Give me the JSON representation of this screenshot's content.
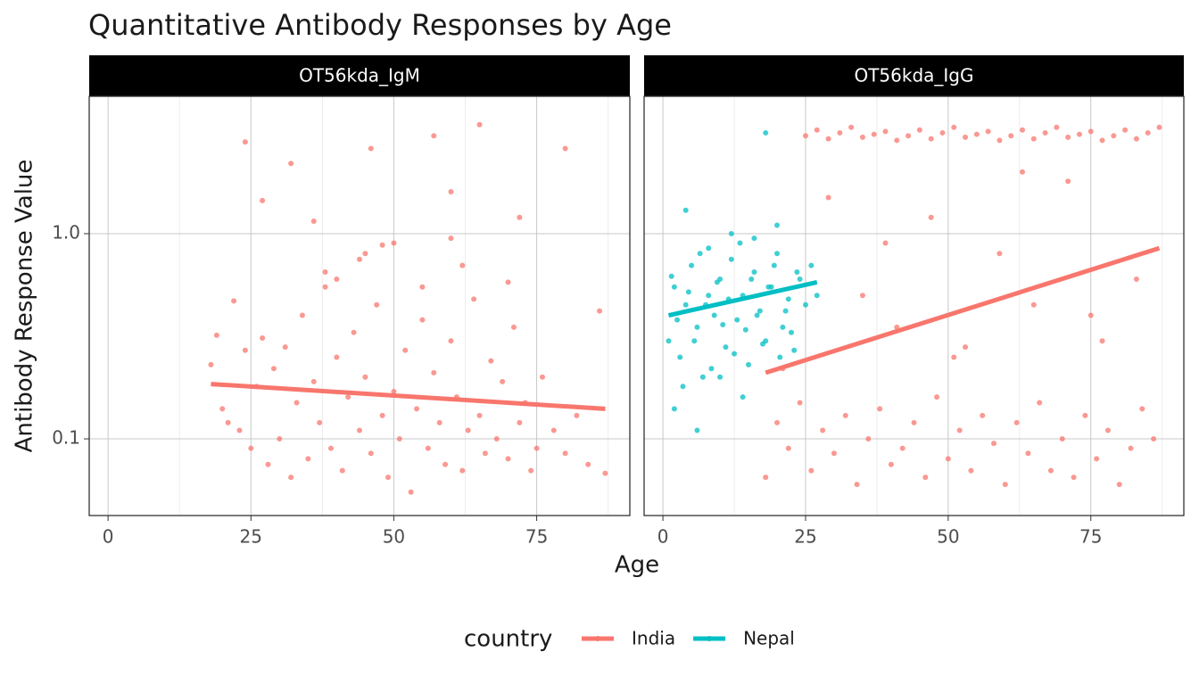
{
  "chart_data": {
    "type": "scatter",
    "title": "Quantitative Antibody Responses by Age",
    "xlabel": "Age",
    "ylabel": "Antibody Response Value",
    "legend_title": "country",
    "log_y": true,
    "grid": true,
    "xlim": [
      -3.3,
      91.3
    ],
    "xticks": [
      0,
      25,
      50,
      75
    ],
    "x_minor_ticks": [
      12.5,
      37.5,
      62.5,
      87.5
    ],
    "ylim": [
      0.0423,
      4.67
    ],
    "yticks": [
      {
        "value": 0.1,
        "label": "0.1"
      },
      {
        "value": 1,
        "label": "1.0"
      }
    ],
    "facets": [
      {
        "title": "OT56kda_IgM",
        "series": [
          {
            "name": "India",
            "color": "#F8766D",
            "x": [
              18,
              19,
              20,
              21,
              22,
              23,
              24,
              25,
              26,
              27,
              28,
              29,
              30,
              31,
              32,
              33,
              34,
              35,
              36,
              37,
              38,
              39,
              40,
              41,
              42,
              43,
              44,
              45,
              46,
              47,
              48,
              49,
              50,
              51,
              52,
              53,
              54,
              55,
              56,
              57,
              58,
              59,
              60,
              61,
              62,
              63,
              64,
              65,
              66,
              67,
              68,
              69,
              70,
              71,
              72,
              73,
              74,
              75,
              76,
              78,
              80,
              82,
              84,
              86,
              87,
              24,
              27,
              32,
              36,
              46,
              57,
              60,
              65,
              72,
              80,
              40,
              45,
              50,
              55,
              60,
              62,
              70,
              38,
              44,
              48
            ],
            "y": [
              0.23,
              0.32,
              0.14,
              0.12,
              0.47,
              0.11,
              0.27,
              0.09,
              0.18,
              0.31,
              0.075,
              0.22,
              0.1,
              0.28,
              0.065,
              0.15,
              0.4,
              0.08,
              0.19,
              0.12,
              0.55,
              0.09,
              0.25,
              0.07,
              0.16,
              0.33,
              0.11,
              0.2,
              0.085,
              0.45,
              0.13,
              0.065,
              0.17,
              0.1,
              0.27,
              0.055,
              0.14,
              0.38,
              0.09,
              0.21,
              0.12,
              0.075,
              0.3,
              0.16,
              0.07,
              0.11,
              0.48,
              0.13,
              0.085,
              0.24,
              0.1,
              0.19,
              0.08,
              0.35,
              0.12,
              0.15,
              0.07,
              0.09,
              0.2,
              0.11,
              0.085,
              0.13,
              0.075,
              0.42,
              0.068,
              2.8,
              1.45,
              2.2,
              1.15,
              2.6,
              3.0,
              1.6,
              3.4,
              1.2,
              2.6,
              0.6,
              0.8,
              0.9,
              0.55,
              0.95,
              0.7,
              0.58,
              0.65,
              0.75,
              0.88
            ],
            "fit_x": [
              18,
              87
            ],
            "fit_y": [
              0.185,
              0.14
            ]
          }
        ]
      },
      {
        "title": "OT56kda_IgG",
        "series": [
          {
            "name": "India",
            "color": "#F8766D",
            "x": [
              18,
              20,
              22,
              24,
              26,
              28,
              30,
              32,
              34,
              36,
              38,
              40,
              42,
              44,
              46,
              48,
              50,
              52,
              54,
              56,
              58,
              60,
              62,
              64,
              66,
              68,
              70,
              72,
              74,
              76,
              78,
              80,
              82,
              84,
              86,
              25,
              27,
              29,
              31,
              33,
              35,
              37,
              39,
              41,
              43,
              45,
              47,
              49,
              51,
              53,
              55,
              57,
              59,
              61,
              63,
              65,
              67,
              69,
              71,
              73,
              75,
              77,
              79,
              81,
              83,
              85,
              87,
              21,
              29,
              35,
              41,
              47,
              53,
              59,
              65,
              71,
              77,
              83,
              39,
              51,
              63,
              75
            ],
            "y": [
              0.065,
              0.12,
              0.09,
              0.15,
              0.07,
              0.11,
              0.085,
              0.13,
              0.06,
              0.1,
              0.14,
              0.075,
              0.09,
              0.12,
              0.065,
              0.16,
              0.08,
              0.11,
              0.07,
              0.13,
              0.095,
              0.06,
              0.12,
              0.085,
              0.15,
              0.07,
              0.1,
              0.065,
              0.13,
              0.08,
              0.11,
              0.06,
              0.09,
              0.14,
              0.1,
              3.0,
              3.2,
              2.9,
              3.1,
              3.3,
              2.95,
              3.05,
              3.15,
              2.85,
              3.0,
              3.2,
              2.9,
              3.1,
              3.3,
              2.95,
              3.05,
              3.15,
              2.85,
              3.0,
              3.2,
              2.9,
              3.1,
              3.3,
              2.95,
              3.05,
              3.15,
              2.85,
              3.0,
              3.2,
              2.9,
              3.1,
              3.3,
              0.22,
              1.5,
              0.5,
              0.35,
              1.2,
              0.28,
              0.8,
              0.45,
              1.8,
              0.3,
              0.6,
              0.9,
              0.25,
              2.0,
              0.4
            ],
            "fit_x": [
              18,
              87
            ],
            "fit_y": [
              0.21,
              0.85
            ]
          },
          {
            "name": "Nepal",
            "color": "#00BFC4",
            "x": [
              1,
              2,
              3,
              4,
              5,
              6,
              7,
              8,
              9,
              10,
              11,
              12,
              13,
              14,
              15,
              16,
              17,
              18,
              19,
              20,
              21,
              22,
              23,
              24,
              25,
              26,
              27,
              1.5,
              2.5,
              3.5,
              4.5,
              5.5,
              6.5,
              7.5,
              8.5,
              9.5,
              10.5,
              11.5,
              12.5,
              13.5,
              14.5,
              15.5,
              16.5,
              17.5,
              18.5,
              19.5,
              20.5,
              21.5,
              22.5,
              23.5,
              2,
              4,
              6,
              8,
              10,
              12,
              14,
              16,
              18,
              20
            ],
            "y": [
              0.3,
              0.55,
              0.25,
              0.45,
              0.7,
              0.35,
              0.2,
              0.5,
              0.4,
              0.6,
              0.28,
              0.75,
              0.38,
              0.5,
              0.23,
              0.65,
              0.42,
              0.3,
              0.55,
              0.8,
              0.35,
              0.48,
              0.27,
              0.6,
              0.45,
              0.7,
              0.5,
              0.62,
              0.38,
              0.18,
              0.52,
              0.3,
              0.8,
              0.45,
              0.22,
              0.58,
              0.36,
              0.48,
              0.26,
              0.9,
              0.34,
              0.6,
              0.4,
              0.29,
              0.55,
              0.7,
              0.25,
              0.42,
              0.33,
              0.65,
              0.14,
              1.3,
              0.11,
              0.85,
              0.2,
              1.0,
              0.16,
              0.95,
              3.1,
              1.1
            ],
            "fit_x": [
              1,
              27
            ],
            "fit_y": [
              0.4,
              0.58
            ]
          }
        ]
      }
    ]
  }
}
